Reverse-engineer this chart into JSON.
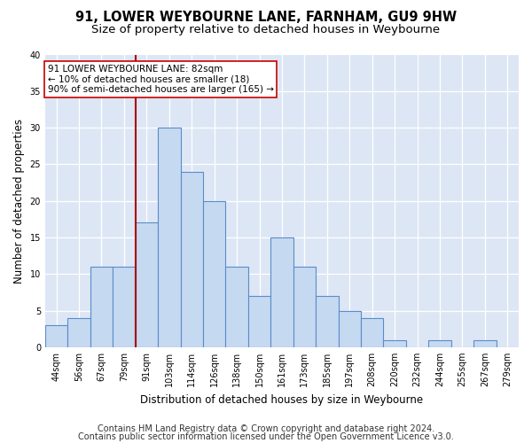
{
  "title1": "91, LOWER WEYBOURNE LANE, FARNHAM, GU9 9HW",
  "title2": "Size of property relative to detached houses in Weybourne",
  "xlabel": "Distribution of detached houses by size in Weybourne",
  "ylabel": "Number of detached properties",
  "bar_labels": [
    "44sqm",
    "56sqm",
    "67sqm",
    "79sqm",
    "91sqm",
    "103sqm",
    "114sqm",
    "126sqm",
    "138sqm",
    "150sqm",
    "161sqm",
    "173sqm",
    "185sqm",
    "197sqm",
    "208sqm",
    "220sqm",
    "232sqm",
    "244sqm",
    "255sqm",
    "267sqm",
    "279sqm"
  ],
  "bar_values": [
    3,
    4,
    11,
    11,
    17,
    30,
    24,
    20,
    11,
    7,
    15,
    11,
    7,
    5,
    4,
    1,
    0,
    1,
    0,
    1,
    0
  ],
  "bar_color": "#c5d9f1",
  "bar_edge_color": "#5b8cc8",
  "vline_color": "#aa0000",
  "annotation_line1": "91 LOWER WEYBOURNE LANE: 82sqm",
  "annotation_line2": "← 10% of detached houses are smaller (18)",
  "annotation_line3": "90% of semi-detached houses are larger (165) →",
  "annotation_box_color": "#ffffff",
  "annotation_box_edge": "#cc0000",
  "ylim": [
    0,
    40
  ],
  "yticks": [
    0,
    5,
    10,
    15,
    20,
    25,
    30,
    35,
    40
  ],
  "footer1": "Contains HM Land Registry data © Crown copyright and database right 2024.",
  "footer2": "Contains public sector information licensed under the Open Government Licence v3.0.",
  "bg_color": "#ffffff",
  "plot_bg_color": "#dce6f5",
  "grid_color": "#ffffff",
  "title_fontsize": 10.5,
  "subtitle_fontsize": 9.5,
  "axis_label_fontsize": 8.5,
  "tick_fontsize": 7,
  "footer_fontsize": 7,
  "annot_fontsize": 7.5
}
